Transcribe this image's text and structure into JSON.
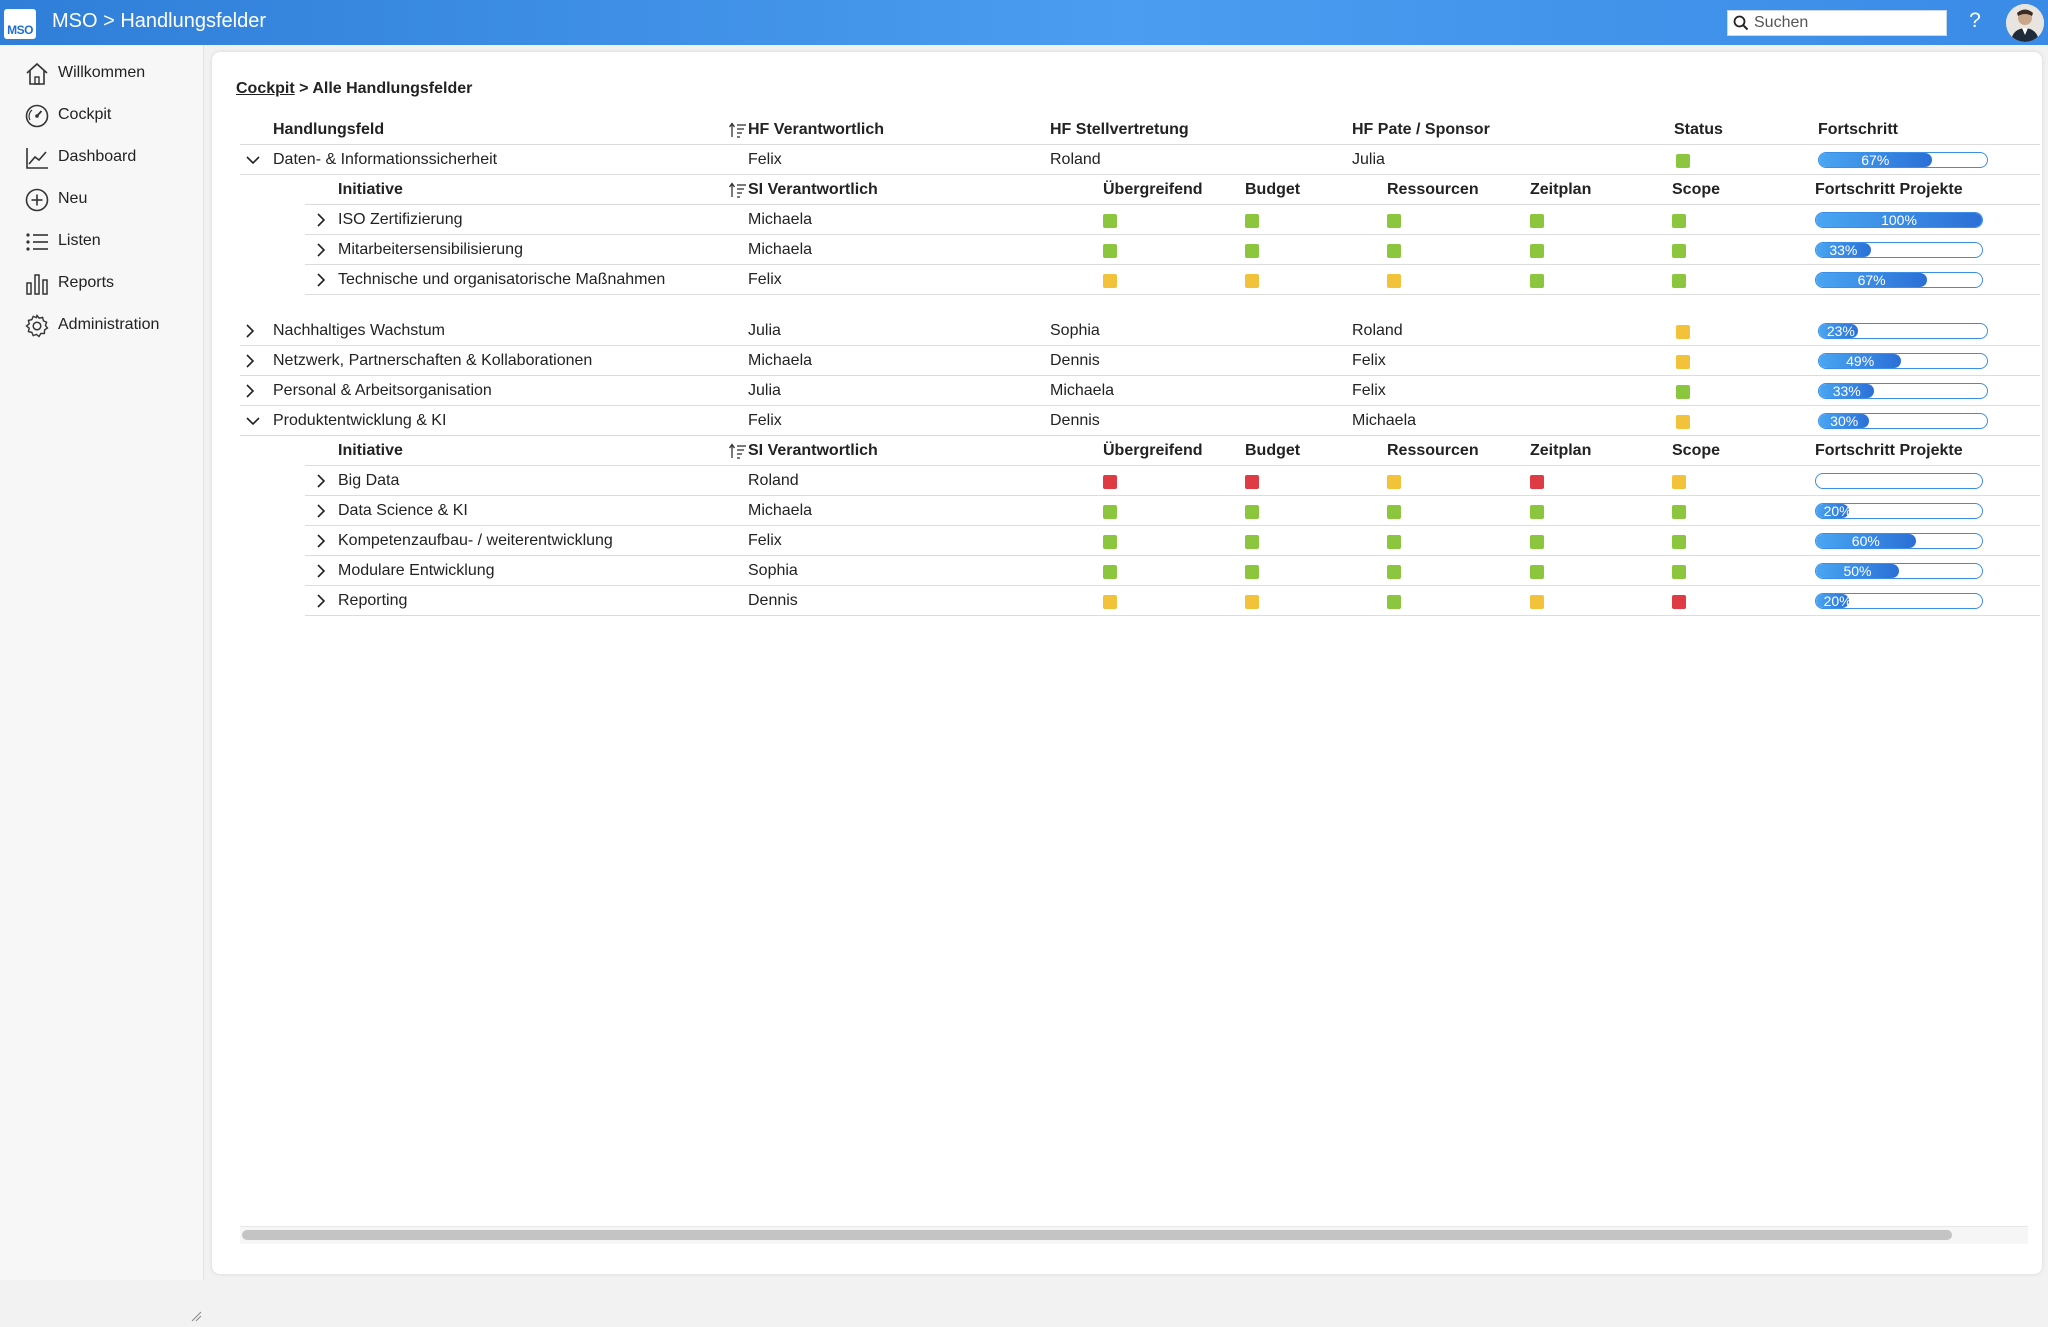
{
  "header": {
    "logo_text": "MSO",
    "title": "MSO > Handlungsfelder",
    "search_placeholder": "Suchen",
    "help_label": "?"
  },
  "sidebar": {
    "items": [
      {
        "label": "Willkommen",
        "icon": "home-icon"
      },
      {
        "label": "Cockpit",
        "icon": "gauge-icon"
      },
      {
        "label": "Dashboard",
        "icon": "line-chart-icon"
      },
      {
        "label": "Neu",
        "icon": "plus-circle-icon"
      },
      {
        "label": "Listen",
        "icon": "list-icon"
      },
      {
        "label": "Reports",
        "icon": "bar-chart-icon"
      },
      {
        "label": "Administration",
        "icon": "gear-icon"
      }
    ]
  },
  "breadcrumb": {
    "link": "Cockpit",
    "rest": " > Alle Handlungsfelder"
  },
  "table": {
    "columns": {
      "handlungsfeld": "Handlungsfeld",
      "verantwortlich": "HF Verantwortlich",
      "stellvertretung": "HF Stellvertretung",
      "pate": "HF Pate / Sponsor",
      "status": "Status",
      "fortschritt": "Fortschritt"
    },
    "sub_columns": {
      "initiative": "Initiative",
      "verantwortlich": "SI Verantwortlich",
      "uebergreifend": "Übergreifend",
      "budget": "Budget",
      "ressourcen": "Ressourcen",
      "zeitplan": "Zeitplan",
      "scope": "Scope",
      "fortschritt": "Fortschritt Projekte"
    },
    "rows": [
      {
        "name": "Daten- & Informationssicherheit",
        "verantwortlich": "Felix",
        "stellvertretung": "Roland",
        "pate": "Julia",
        "status": "green",
        "progress": 67,
        "progress_label": "67%",
        "expanded": true
      },
      {
        "name": "Nachhaltiges Wachstum",
        "verantwortlich": "Julia",
        "stellvertretung": "Sophia",
        "pate": "Roland",
        "status": "yellow",
        "progress": 23,
        "progress_label": "23%",
        "expanded": false
      },
      {
        "name": "Netzwerk, Partnerschaften & Kollaborationen",
        "verantwortlich": "Michaela",
        "stellvertretung": "Dennis",
        "pate": "Felix",
        "status": "yellow",
        "progress": 49,
        "progress_label": "49%",
        "expanded": false
      },
      {
        "name": "Personal & Arbeitsorganisation",
        "verantwortlich": "Julia",
        "stellvertretung": "Michaela",
        "pate": "Felix",
        "status": "green",
        "progress": 33,
        "progress_label": "33%",
        "expanded": false
      },
      {
        "name": "Produktentwicklung & KI",
        "verantwortlich": "Felix",
        "stellvertretung": "Dennis",
        "pate": "Michaela",
        "status": "yellow",
        "progress": 30,
        "progress_label": "30%",
        "expanded": true
      }
    ],
    "sub_rows_0": [
      {
        "name": "ISO Zertifizierung",
        "verantwortlich": "Michaela",
        "uebergreifend": "green",
        "budget": "green",
        "ressourcen": "green",
        "zeitplan": "green",
        "scope": "green",
        "progress": 100,
        "progress_label": "100%"
      },
      {
        "name": "Mitarbeitersensibilisierung",
        "verantwortlich": "Michaela",
        "uebergreifend": "green",
        "budget": "green",
        "ressourcen": "green",
        "zeitplan": "green",
        "scope": "green",
        "progress": 33,
        "progress_label": "33%"
      },
      {
        "name": "Technische und organisatorische Maßnahmen",
        "verantwortlich": "Felix",
        "uebergreifend": "yellow",
        "budget": "yellow",
        "ressourcen": "yellow",
        "zeitplan": "green",
        "scope": "green",
        "progress": 67,
        "progress_label": "67%"
      }
    ],
    "sub_rows_4": [
      {
        "name": "Big Data",
        "verantwortlich": "Roland",
        "uebergreifend": "red",
        "budget": "red",
        "ressourcen": "yellow",
        "zeitplan": "red",
        "scope": "yellow",
        "progress": 0,
        "progress_label": ""
      },
      {
        "name": "Data Science & KI",
        "verantwortlich": "Michaela",
        "uebergreifend": "green",
        "budget": "green",
        "ressourcen": "green",
        "zeitplan": "green",
        "scope": "green",
        "progress": 20,
        "progress_label": "20%"
      },
      {
        "name": "Kompetenzaufbau- / weiterentwicklung",
        "verantwortlich": "Felix",
        "uebergreifend": "green",
        "budget": "green",
        "ressourcen": "green",
        "zeitplan": "green",
        "scope": "green",
        "progress": 60,
        "progress_label": "60%"
      },
      {
        "name": "Modulare Entwicklung",
        "verantwortlich": "Sophia",
        "uebergreifend": "green",
        "budget": "green",
        "ressourcen": "green",
        "zeitplan": "green",
        "scope": "green",
        "progress": 50,
        "progress_label": "50%"
      },
      {
        "name": "Reporting",
        "verantwortlich": "Dennis",
        "uebergreifend": "yellow",
        "budget": "yellow",
        "ressourcen": "green",
        "zeitplan": "yellow",
        "scope": "red",
        "progress": 20,
        "progress_label": "20%"
      }
    ]
  }
}
